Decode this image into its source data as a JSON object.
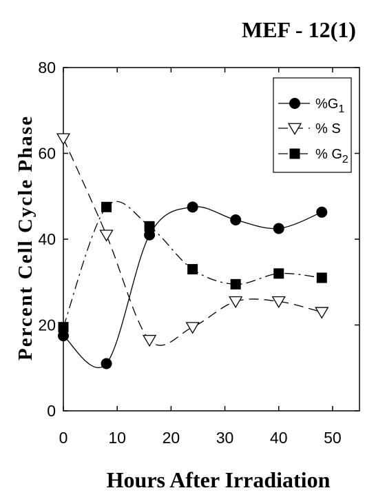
{
  "chart_data": {
    "type": "line",
    "title": "MEF - 12(1)",
    "xlabel": "Hours After Irradiation",
    "ylabel": "Percent Cell Cycle Phase",
    "xlim": [
      0,
      55
    ],
    "ylim": [
      0,
      80
    ],
    "xticks": [
      0,
      10,
      20,
      30,
      40,
      50
    ],
    "yticks": [
      0,
      20,
      40,
      60,
      80
    ],
    "grid": false,
    "legend_position": "top-right",
    "series": [
      {
        "name": "%G1",
        "legend_main": "%G",
        "legend_sub": "1",
        "marker": "circle",
        "line": "solid",
        "x": [
          0,
          8,
          16,
          24,
          32,
          40,
          48
        ],
        "y": [
          17.5,
          11,
          41,
          47.5,
          44.5,
          42.5,
          46.3
        ]
      },
      {
        "name": "% S",
        "legend_main": "% S",
        "legend_sub": "",
        "marker": "triangle-down",
        "line": "dashed",
        "x": [
          0,
          8,
          16,
          24,
          32,
          40,
          48
        ],
        "y": [
          63.5,
          41,
          16.5,
          19.5,
          25.5,
          25.5,
          23
        ]
      },
      {
        "name": "% G2",
        "legend_main": "% G",
        "legend_sub": "2",
        "marker": "square",
        "line": "dashdot",
        "x": [
          0,
          8,
          16,
          24,
          32,
          40,
          48
        ],
        "y": [
          19.5,
          47.5,
          43,
          33,
          29.5,
          32,
          31
        ]
      }
    ]
  }
}
